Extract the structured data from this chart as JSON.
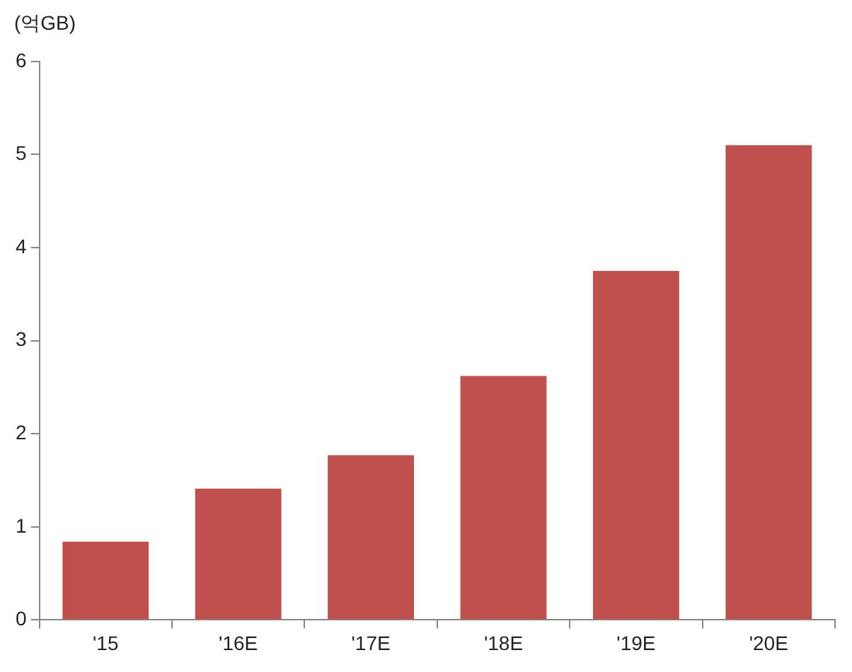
{
  "chart_data": {
    "type": "bar",
    "ylabel": "(억GB)",
    "categories": [
      "'15",
      "'16E",
      "'17E",
      "'18E",
      "'19E",
      "'20E"
    ],
    "values": [
      0.84,
      1.41,
      1.77,
      2.62,
      3.75,
      5.1
    ],
    "color": "#c0504d",
    "ylim": [
      0,
      6
    ],
    "yticks": [
      0,
      1,
      2,
      3,
      4,
      5,
      6
    ],
    "grid": false,
    "legend": false
  }
}
